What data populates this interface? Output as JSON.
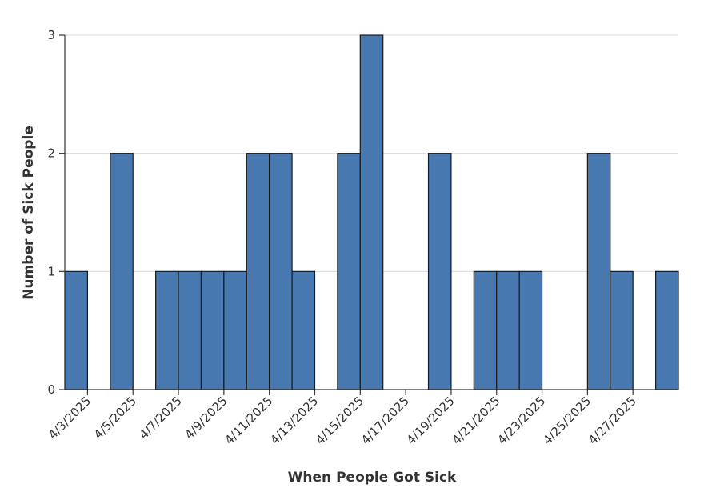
{
  "chart_data": {
    "type": "bar",
    "title": "",
    "xlabel": "When People Got Sick",
    "ylabel": "Number of Sick People",
    "x_range": [
      "2025-04-02",
      "2025-04-29"
    ],
    "ylim": [
      0,
      3
    ],
    "y_ticks": [
      0,
      1,
      2,
      3
    ],
    "grid": "horizontal",
    "legend": "none",
    "bar_color": "#4878b0",
    "bar_edge_color": "#1a1a1a",
    "x_tick_labels": [
      "4/3/2025",
      "4/5/2025",
      "4/7/2025",
      "4/9/2025",
      "4/11/2025",
      "4/13/2025",
      "4/15/2025",
      "4/17/2025",
      "4/19/2025",
      "4/21/2025",
      "4/23/2025",
      "4/25/2025",
      "4/27/2025"
    ],
    "bins": [
      {
        "start": "2025-04-02",
        "count": 1
      },
      {
        "start": "2025-04-03",
        "count": 0
      },
      {
        "start": "2025-04-04",
        "count": 2
      },
      {
        "start": "2025-04-05",
        "count": 0
      },
      {
        "start": "2025-04-06",
        "count": 1
      },
      {
        "start": "2025-04-07",
        "count": 1
      },
      {
        "start": "2025-04-08",
        "count": 1
      },
      {
        "start": "2025-04-09",
        "count": 1
      },
      {
        "start": "2025-04-10",
        "count": 2
      },
      {
        "start": "2025-04-11",
        "count": 2
      },
      {
        "start": "2025-04-12",
        "count": 1
      },
      {
        "start": "2025-04-13",
        "count": 0
      },
      {
        "start": "2025-04-14",
        "count": 2
      },
      {
        "start": "2025-04-15",
        "count": 3
      },
      {
        "start": "2025-04-16",
        "count": 0
      },
      {
        "start": "2025-04-17",
        "count": 0
      },
      {
        "start": "2025-04-18",
        "count": 2
      },
      {
        "start": "2025-04-19",
        "count": 0
      },
      {
        "start": "2025-04-20",
        "count": 1
      },
      {
        "start": "2025-04-21",
        "count": 1
      },
      {
        "start": "2025-04-22",
        "count": 1
      },
      {
        "start": "2025-04-23",
        "count": 0
      },
      {
        "start": "2025-04-24",
        "count": 0
      },
      {
        "start": "2025-04-25",
        "count": 2
      },
      {
        "start": "2025-04-26",
        "count": 1
      },
      {
        "start": "2025-04-27",
        "count": 0
      },
      {
        "start": "2025-04-28",
        "count": 1
      }
    ]
  }
}
